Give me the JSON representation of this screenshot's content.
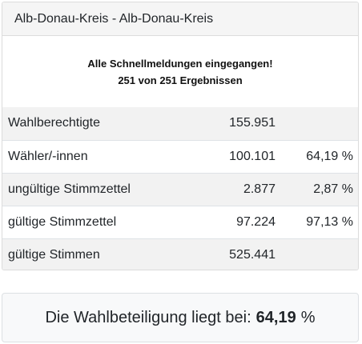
{
  "header": {
    "title": "Alb-Donau-Kreis - Alb-Donau-Kreis"
  },
  "notice": {
    "line1": "Alle Schnellmeldungen eingegangen!",
    "line2": "251 von 251 Ergebnissen"
  },
  "stats": {
    "rows": [
      {
        "label": "Wahlberechtigte",
        "value": "155.951",
        "percent": ""
      },
      {
        "label": "Wähler/-innen",
        "value": "100.101",
        "percent": "64,19 %"
      },
      {
        "label": "ungültige Stimmzettel",
        "value": "2.877",
        "percent": "2,87 %"
      },
      {
        "label": "gültige Stimmzettel",
        "value": "97.224",
        "percent": "97,13 %"
      },
      {
        "label": "gültige Stimmen",
        "value": "525.441",
        "percent": ""
      }
    ]
  },
  "turnout": {
    "label": "Die Wahlbeteiligung liegt bei:",
    "value": "64,19",
    "unit": "%"
  }
}
